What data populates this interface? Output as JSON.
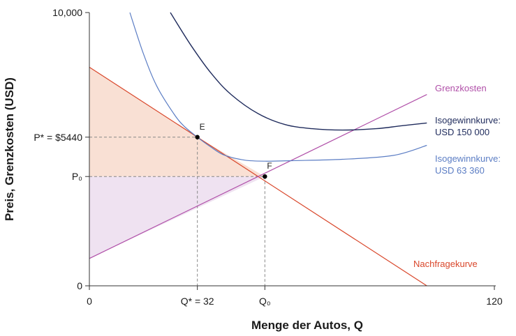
{
  "chart_data": {
    "type": "line",
    "title": "",
    "xlabel": "Menge der Autos, Q",
    "ylabel": "Preis, Grenzkosten (USD)",
    "xlim": [
      0,
      120
    ],
    "ylim": [
      0,
      10000
    ],
    "x_ticks": [
      {
        "value": 0,
        "label": "0"
      },
      {
        "value": 32,
        "label": "Q* = 32"
      },
      {
        "value": 52,
        "label": "Q₀"
      },
      {
        "value": 120,
        "label": "120"
      }
    ],
    "y_ticks": [
      {
        "value": 0,
        "label": "0"
      },
      {
        "value": 4000,
        "label": "P₀"
      },
      {
        "value": 5440,
        "label": "P* = $5440"
      },
      {
        "value": 10000,
        "label": "10,000"
      }
    ],
    "series": [
      {
        "name": "Nachfragekurve",
        "color": "#d9472b",
        "x": [
          0,
          100
        ],
        "y": [
          8000,
          0
        ]
      },
      {
        "name": "Grenzkosten",
        "color": "#b04fa8",
        "x": [
          0,
          100
        ],
        "y": [
          1000,
          7000
        ]
      },
      {
        "name": "Isogewinnkurve: USD 63 360",
        "color": "#5b7dc4",
        "x": [
          12,
          16,
          20,
          25,
          28,
          32,
          36,
          40,
          46,
          52,
          60,
          75,
          90,
          100
        ],
        "y": [
          10000,
          8500,
          7300,
          6300,
          5850,
          5440,
          5080,
          4780,
          4600,
          4560,
          4580,
          4630,
          4770,
          5140
        ]
      },
      {
        "name": "Isogewinnkurve: USD 150 000",
        "color": "#1f2b5c",
        "x": [
          24,
          30,
          36,
          42,
          50,
          58,
          66,
          75,
          85,
          92,
          100
        ],
        "y": [
          10000,
          8820,
          7790,
          7000,
          6300,
          5900,
          5750,
          5700,
          5750,
          5850,
          5960
        ]
      }
    ],
    "points": [
      {
        "label": "E",
        "x": 32,
        "y": 5440
      },
      {
        "label": "F",
        "x": 52,
        "y": 4000
      }
    ],
    "shaded_regions": [
      {
        "color": "#f9e0d4",
        "note": "Konsumentenrente"
      },
      {
        "color": "#efe2f1",
        "note": "Produzentenrente"
      }
    ],
    "curve_labels": [
      {
        "lines": [
          "Grenzkosten"
        ],
        "color": "#b04fa8"
      },
      {
        "lines": [
          "Isogewinnkurve:",
          "USD 150 000"
        ],
        "color": "#1f2b5c"
      },
      {
        "lines": [
          "Isogewinnkurve:",
          "USD 63 360"
        ],
        "color": "#5b7dc4"
      },
      {
        "lines": [
          "Nachfragekurve"
        ],
        "color": "#d9472b"
      }
    ],
    "grid": false,
    "legend": "none"
  }
}
